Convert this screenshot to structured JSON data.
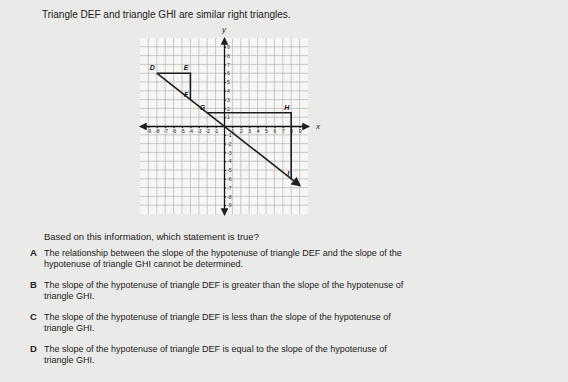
{
  "title": "Triangle DEF and triangle GHI are similar right triangles.",
  "chart_data": {
    "type": "line",
    "x_label": "x",
    "y_label": "y",
    "xlim": [
      -10,
      10
    ],
    "ylim": [
      -10,
      10
    ],
    "xticks": [
      -9,
      -8,
      -7,
      -6,
      -5,
      -4,
      -3,
      -2,
      -1,
      1,
      2,
      3,
      4,
      5,
      6,
      7,
      8,
      9
    ],
    "yticks": [
      -9,
      -8,
      -7,
      -6,
      -5,
      -4,
      -3,
      -2,
      -1,
      1,
      2,
      3,
      4,
      5,
      6,
      7,
      8,
      9
    ],
    "grid": true,
    "color": "#1e1e1e",
    "series": [
      {
        "x": [
          -8,
          -4,
          -4
        ],
        "values": [
          6,
          6,
          3
        ]
      },
      {
        "x": [
          -2,
          8,
          8
        ],
        "values": [
          1.5,
          1.5,
          -6
        ]
      },
      {
        "x": [
          -8,
          9
        ],
        "values": [
          6,
          -6.75
        ],
        "marker": "arrow"
      }
    ],
    "point_labels": [
      {
        "label": "D",
        "x": -8,
        "y": 6
      },
      {
        "label": "E",
        "x": -4,
        "y": 6
      },
      {
        "label": "F",
        "x": -4,
        "y": 3
      },
      {
        "label": "G",
        "x": -2,
        "y": 1.5
      },
      {
        "label": "H",
        "x": 8,
        "y": 1.5
      },
      {
        "label": "I",
        "x": 8,
        "y": -6
      }
    ]
  },
  "question": "Based on this information, which statement is true?",
  "options": [
    {
      "letter": "A",
      "lines": [
        "The relationship between the slope of the hypotenuse of triangle DEF and the slope of the",
        "hypotenuse of triangle GHI cannot be determined."
      ]
    },
    {
      "letter": "B",
      "lines": [
        "The slope of the hypotenuse of triangle DEF is greater than the slope of the hypotenuse of",
        "triangle GHI."
      ]
    },
    {
      "letter": "C",
      "lines": [
        "The slope of the hypotenuse of triangle DEF is less than the slope of the hypotenuse of",
        "triangle GHI."
      ]
    },
    {
      "letter": "D",
      "lines": [
        "The slope of the hypotenuse of triangle DEF is equal to the slope of the hypotenuse of",
        "triangle GHI."
      ]
    }
  ]
}
